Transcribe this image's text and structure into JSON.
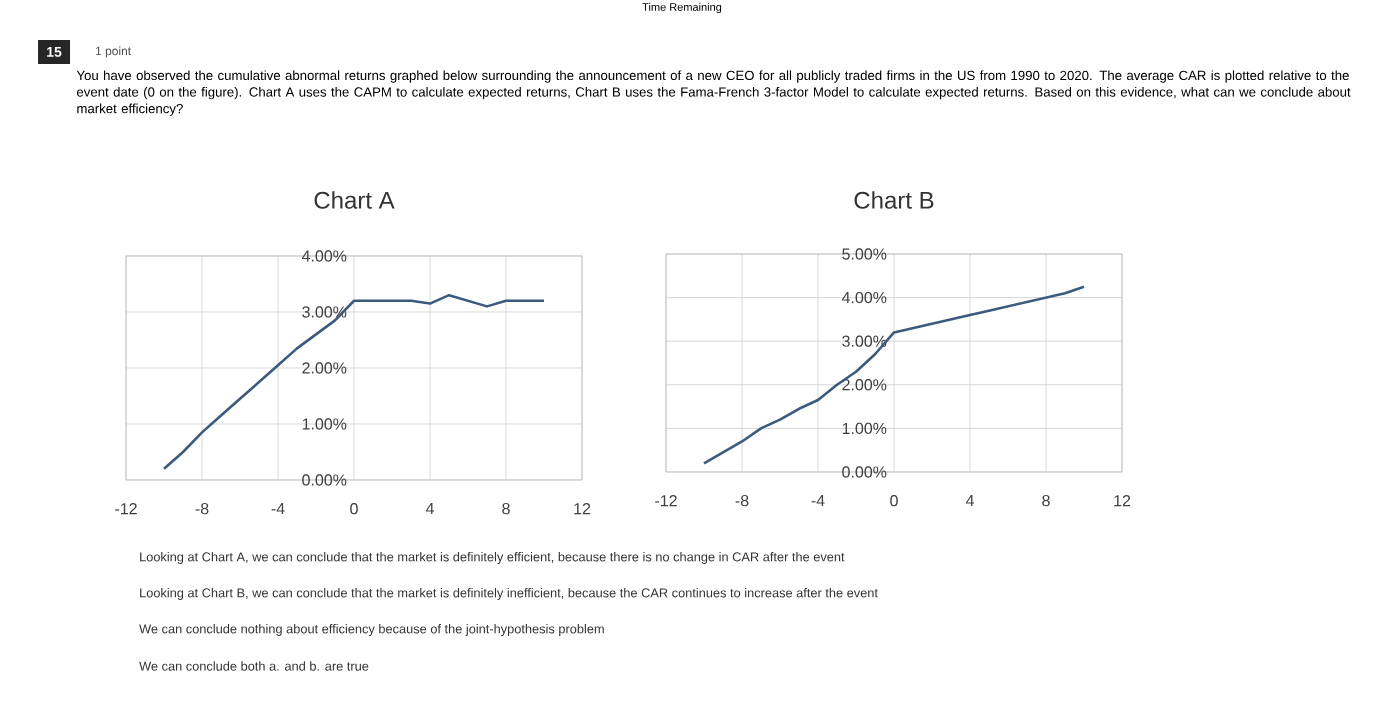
{
  "chart_data": [
    {
      "type": "line",
      "title": "Chart A",
      "color": "#3b5a80",
      "grid": true,
      "marker": "none",
      "line_style": "solid",
      "x": [
        -10,
        -9,
        -8,
        -7,
        -6,
        -5,
        -4,
        -3,
        -2,
        -1,
        0,
        1,
        2,
        3,
        4,
        5,
        6,
        7,
        8,
        9,
        10
      ],
      "values": [
        0.2,
        0.5,
        0.85,
        1.15,
        1.45,
        1.75,
        2.05,
        2.35,
        2.6,
        2.85,
        3.2,
        3.2,
        3.2,
        3.2,
        3.15,
        3.3,
        3.2,
        3.1,
        3.2,
        3.2,
        3.2
      ],
      "xlim": [
        -12,
        12
      ],
      "xticks": [
        -12,
        -8,
        -4,
        0,
        4,
        8,
        12
      ],
      "ylim": [
        0,
        4
      ],
      "yticks": [
        {
          "value": 0,
          "label": "0.00%"
        },
        {
          "value": 1,
          "label": "1.00%"
        },
        {
          "value": 2,
          "label": "2.00%"
        },
        {
          "value": 3,
          "label": "3.00%"
        },
        {
          "value": 4,
          "label": "4.00%"
        }
      ],
      "annotations": [
        "Time Remaining",
        "15",
        "1 point",
        "You have observed the cumulative abnormal returns graphed below surrounding the announcement of a new CEO for all publicly traded firms in the US from 1990 to 2020. The average CAR is plotted relative to the event date (0 on the figure). Chart A uses the CAPM to calculate expected returns, Chart B uses the Fama-French 3-factor Model to calculate expected returns. Based on this evidence, what can we conclude about market efficiency?",
        "Looking at Chart A, we can conclude that the market is definitely efficient, because there is no change in CAR after the event",
        "Looking at Chart B, we can conclude that the market is definitely inefficient, because the CAR continues to increase after the event",
        "We can conclude nothing about efficiency because of the joint-hypothesis problem",
        "We can conclude both a. and b. are true"
      ]
    },
    {
      "type": "line",
      "title": "Chart B",
      "color": "#3b5a80",
      "grid": true,
      "marker": "none",
      "line_style": "solid",
      "x": [
        -10,
        -9,
        -8,
        -7,
        -6,
        -5,
        -4,
        -3,
        -2,
        -1,
        0,
        1,
        2,
        3,
        4,
        5,
        6,
        7,
        8,
        9,
        10
      ],
      "values": [
        0.2,
        0.45,
        0.7,
        1.0,
        1.2,
        1.45,
        1.65,
        2.0,
        2.3,
        2.7,
        3.2,
        3.3,
        3.4,
        3.5,
        3.6,
        3.7,
        3.8,
        3.9,
        4.0,
        4.1,
        4.25
      ],
      "xlim": [
        -12,
        12
      ],
      "xticks": [
        -12,
        -8,
        -4,
        0,
        4,
        8,
        12
      ],
      "ylim": [
        0,
        5
      ],
      "yticks": [
        {
          "value": 0,
          "label": "0.00%"
        },
        {
          "value": 1,
          "label": "1.00%"
        },
        {
          "value": 2,
          "label": "2.00%"
        },
        {
          "value": 3,
          "label": "3.00%"
        },
        {
          "value": 4,
          "label": "4.00%"
        },
        {
          "value": 5,
          "label": "5.00%"
        }
      ]
    }
  ]
}
